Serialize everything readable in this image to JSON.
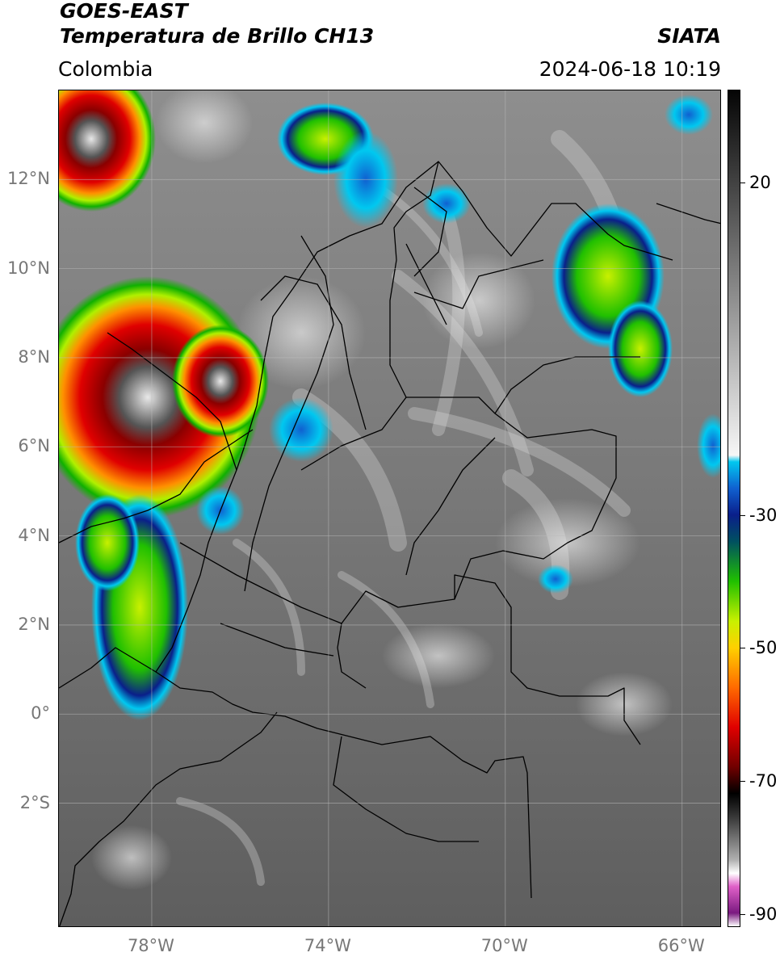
{
  "header": {
    "line1": "GOES-EAST",
    "line2": "Temperatura de Brillo CH13",
    "region": "Colombia",
    "brand": "SIATA",
    "datetime": "2024-06-18 10:19"
  },
  "map": {
    "lat_ticks": [
      {
        "label": "12°N",
        "lat": 12
      },
      {
        "label": "10°N",
        "lat": 10
      },
      {
        "label": "8°N",
        "lat": 8
      },
      {
        "label": "6°N",
        "lat": 6
      },
      {
        "label": "4°N",
        "lat": 4
      },
      {
        "label": "2°N",
        "lat": 2
      },
      {
        "label": "0°",
        "lat": 0
      },
      {
        "label": "2°S",
        "lat": -2
      }
    ],
    "lon_ticks": [
      {
        "label": "78°W",
        "lon": -78
      },
      {
        "label": "74°W",
        "lon": -74
      },
      {
        "label": "70°W",
        "lon": -70
      },
      {
        "label": "66°W",
        "lon": -66
      }
    ],
    "lon_range": [
      -80.1,
      -65.1
    ],
    "lat_range": [
      -4.8,
      14.0
    ]
  },
  "colorbar": {
    "range": [
      -92,
      34
    ],
    "labels": [
      {
        "label": "20",
        "value": 20
      },
      {
        "label": "-30",
        "value": -30
      },
      {
        "label": "-50",
        "value": -50
      },
      {
        "label": "-70",
        "value": -70
      },
      {
        "label": "-90",
        "value": -90
      }
    ],
    "stops": [
      {
        "value": -92,
        "color": "#ffffff"
      },
      {
        "value": -90,
        "color": "#7a1a80"
      },
      {
        "value": -86,
        "color": "#e060c8"
      },
      {
        "value": -84,
        "color": "#ffffff"
      },
      {
        "value": -82,
        "color": "#b0b0b0"
      },
      {
        "value": -76,
        "color": "#404040"
      },
      {
        "value": -72,
        "color": "#000000"
      },
      {
        "value": -68,
        "color": "#700000"
      },
      {
        "value": -62,
        "color": "#e00000"
      },
      {
        "value": -56,
        "color": "#ff6a00"
      },
      {
        "value": -50,
        "color": "#ffd000"
      },
      {
        "value": -46,
        "color": "#c8f000"
      },
      {
        "value": -40,
        "color": "#20c000"
      },
      {
        "value": -34,
        "color": "#005060"
      },
      {
        "value": -30,
        "color": "#0a1f8a"
      },
      {
        "value": -26,
        "color": "#1060d0"
      },
      {
        "value": -22,
        "color": "#00c8f0"
      },
      {
        "value": -21,
        "color": "#f6f6f6"
      },
      {
        "value": 34,
        "color": "#050505"
      }
    ]
  }
}
